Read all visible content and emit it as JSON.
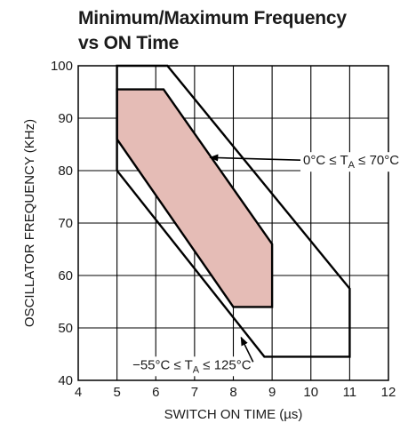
{
  "chart_data": {
    "type": "area",
    "title_lines": [
      "Minimum/Maximum Frequency",
      "vs ON Time"
    ],
    "xlabel": "SWITCH ON TIME (µs)",
    "ylabel": "OSCILLATOR FREQUENCY (KHz)",
    "xlim": [
      4,
      12
    ],
    "ylim": [
      40,
      100
    ],
    "x_ticks": [
      4,
      5,
      6,
      7,
      8,
      9,
      10,
      11,
      12
    ],
    "y_ticks": [
      40,
      50,
      60,
      70,
      80,
      90,
      100
    ],
    "grid": true,
    "regions": [
      {
        "label_parts": {
          "a": "0°C ≤ T",
          "sub": "A",
          "b": " ≤ 70°C"
        },
        "fill": "#e5bcb6",
        "stroke": "#000000",
        "points": [
          [
            5,
            95.5
          ],
          [
            6.2,
            95.5
          ],
          [
            9,
            66
          ],
          [
            9,
            54
          ],
          [
            8,
            54
          ],
          [
            5,
            86
          ]
        ]
      },
      {
        "label_parts": {
          "a": "−55°C ≤ T",
          "sub": "A",
          "b": " ≤ 125°C"
        },
        "fill": "none",
        "stroke": "#000000",
        "points": [
          [
            5,
            100
          ],
          [
            6.3,
            100
          ],
          [
            11,
            57.5
          ],
          [
            11,
            44.5
          ],
          [
            8.8,
            44.5
          ],
          [
            5,
            80
          ]
        ]
      }
    ],
    "annotations": [
      {
        "region": 0,
        "text_at": [
          9.8,
          82
        ],
        "arrow_tip": [
          7.4,
          82.5
        ]
      },
      {
        "region": 1,
        "text_at": [
          5.4,
          43
        ],
        "arrow_tip": [
          8.2,
          48.2
        ]
      }
    ]
  }
}
